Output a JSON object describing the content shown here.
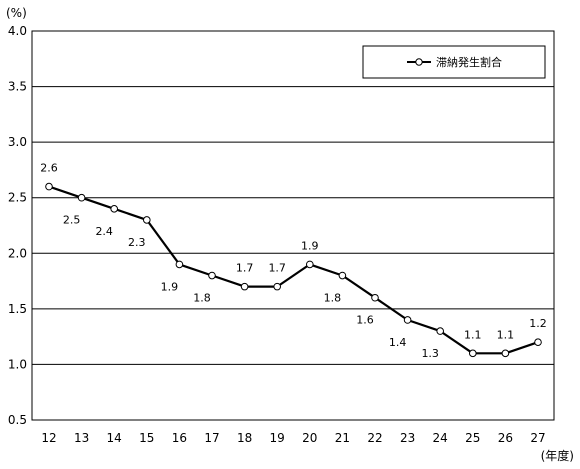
{
  "chart_data": {
    "type": "line",
    "title": "",
    "unit_label": "(%)",
    "xlabel": "(年度)",
    "ylabel": "",
    "ylim": [
      0.5,
      4.0
    ],
    "yticks": [
      "0.5",
      "1.0",
      "1.5",
      "2.0",
      "2.5",
      "3.0",
      "3.5",
      "4.0"
    ],
    "grid": true,
    "legend_position": "top-right",
    "categories": [
      "12",
      "13",
      "14",
      "15",
      "16",
      "17",
      "18",
      "19",
      "20",
      "21",
      "22",
      "23",
      "24",
      "25",
      "26",
      "27"
    ],
    "series": [
      {
        "name": "滞納発生割合",
        "color": "#000000",
        "marker": "open-circle",
        "values": [
          2.6,
          2.5,
          2.4,
          2.3,
          1.9,
          1.8,
          1.7,
          1.7,
          1.9,
          1.8,
          1.6,
          1.4,
          1.3,
          1.1,
          1.1,
          1.2
        ],
        "labels": [
          "2.6",
          "2.5",
          "2.4",
          "2.3",
          "1.9",
          "1.8",
          "1.7",
          "1.7",
          "1.9",
          "1.8",
          "1.6",
          "1.4",
          "1.3",
          "1.1",
          "1.1",
          "1.2"
        ]
      }
    ]
  }
}
